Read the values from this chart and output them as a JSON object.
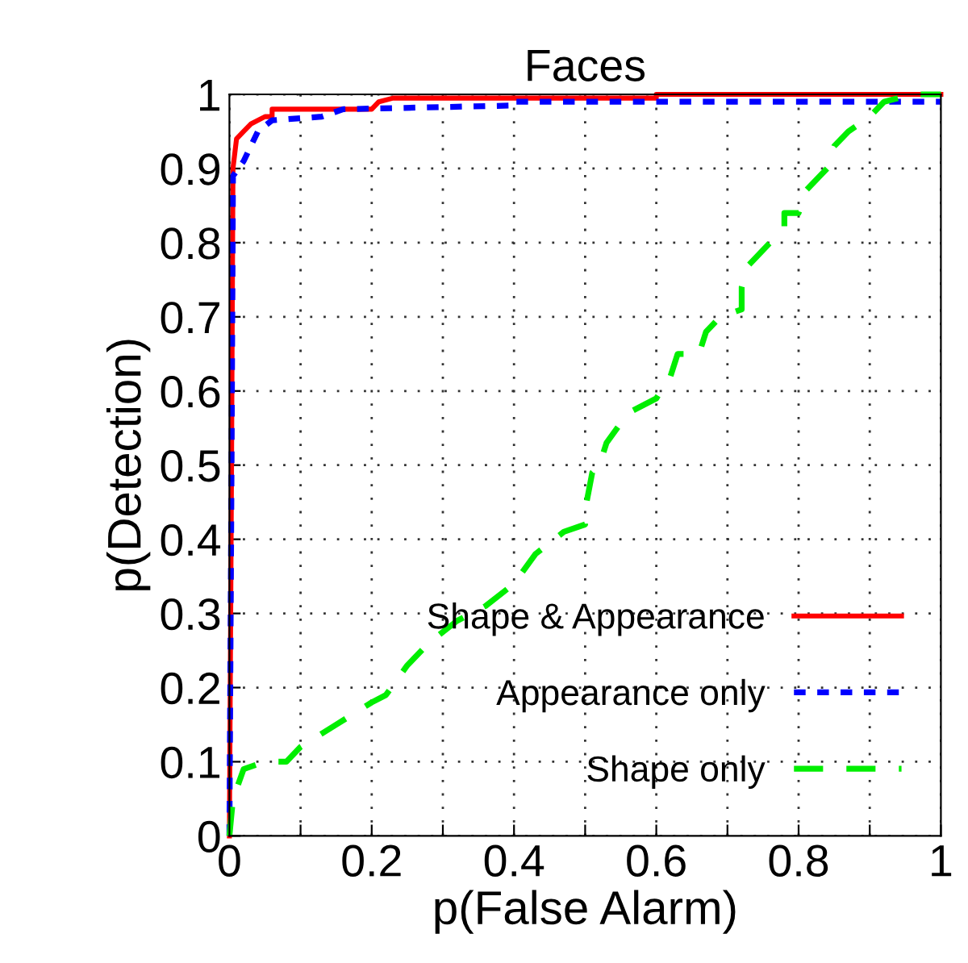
{
  "chart_data": {
    "type": "line",
    "title": "Faces",
    "xlabel": "p(False Alarm)",
    "ylabel": "p(Detection)",
    "xlim": [
      0,
      1
    ],
    "ylim": [
      0,
      1
    ],
    "xticks": [
      0,
      {
        "value": 0.1,
        "label": null
      },
      0.2,
      {
        "value": 0.3,
        "label": null
      },
      0.4,
      {
        "value": 0.5,
        "label": null
      },
      0.6,
      {
        "value": 0.7,
        "label": null
      },
      0.8,
      {
        "value": 0.9,
        "label": null
      },
      1
    ],
    "yticks": [
      0,
      0.1,
      0.2,
      0.3,
      0.4,
      0.5,
      0.6,
      0.7,
      0.8,
      0.9,
      1
    ],
    "grid": true,
    "legend": "bottom right",
    "series": [
      {
        "name": "Shape & Appearance",
        "color": "#ff0000",
        "line_style": "solid",
        "x": [
          0,
          0.003,
          0.005,
          0.01,
          0.02,
          0.03,
          0.05,
          0.06,
          0.06,
          0.2,
          0.21,
          0.23,
          0.6,
          0.6,
          1
        ],
        "values": [
          0,
          0.5,
          0.9,
          0.94,
          0.95,
          0.96,
          0.97,
          0.97,
          0.98,
          0.98,
          0.99,
          0.995,
          0.995,
          1,
          1
        ]
      },
      {
        "name": "Appearance only",
        "color": "#0000ff",
        "line_style": "dotted",
        "x": [
          0,
          0.003,
          0.005,
          0.02,
          0.04,
          0.06,
          0.13,
          0.16,
          0.4,
          0.4,
          1
        ],
        "values": [
          0,
          0.5,
          0.89,
          0.91,
          0.95,
          0.965,
          0.97,
          0.98,
          0.985,
          0.99,
          0.99
        ]
      },
      {
        "name": "Shape only",
        "color": "#00ee00",
        "line_style": "dashed",
        "x": [
          0,
          0.005,
          0.02,
          0.05,
          0.08,
          0.1,
          0.15,
          0.2,
          0.22,
          0.25,
          0.28,
          0.32,
          0.36,
          0.4,
          0.43,
          0.47,
          0.5,
          0.5,
          0.51,
          0.52,
          0.53,
          0.56,
          0.6,
          0.62,
          0.63,
          0.66,
          0.67,
          0.69,
          0.72,
          0.72,
          0.73,
          0.76,
          0.78,
          0.78,
          0.8,
          0.81,
          0.84,
          0.85,
          0.87,
          0.9,
          0.92,
          0.96,
          1
        ],
        "values": [
          0,
          0.05,
          0.09,
          0.1,
          0.1,
          0.12,
          0.15,
          0.18,
          0.19,
          0.23,
          0.26,
          0.29,
          0.31,
          0.34,
          0.38,
          0.41,
          0.42,
          0.44,
          0.49,
          0.5,
          0.53,
          0.57,
          0.59,
          0.62,
          0.65,
          0.65,
          0.68,
          0.7,
          0.71,
          0.74,
          0.77,
          0.8,
          0.82,
          0.84,
          0.84,
          0.87,
          0.9,
          0.93,
          0.95,
          0.97,
          0.99,
          1,
          1
        ]
      }
    ]
  }
}
